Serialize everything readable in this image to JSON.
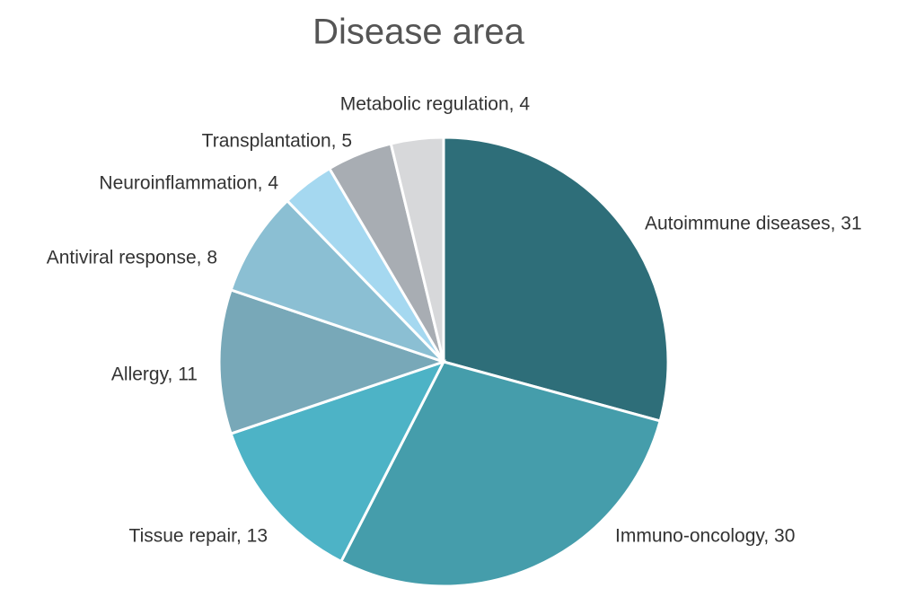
{
  "chart_data": {
    "type": "pie",
    "title": "Disease area",
    "values": [
      31,
      30,
      13,
      11,
      8,
      4,
      5,
      4
    ],
    "value_labels": [
      "Autoimmune diseases, 31",
      "Immuno-oncology, 30",
      "Tissue repair, 13",
      "Allergy, 11",
      "Antiviral response, 8",
      "Neuroinflammation, 4",
      "Transplantation, 5",
      "Metabolic regulation, 4"
    ],
    "colors": [
      "#2e6e79",
      "#459dab",
      "#4db3c6",
      "#78a8b8",
      "#8bbfd3",
      "#a5d8f0",
      "#a8adb3",
      "#d7d8da"
    ]
  }
}
